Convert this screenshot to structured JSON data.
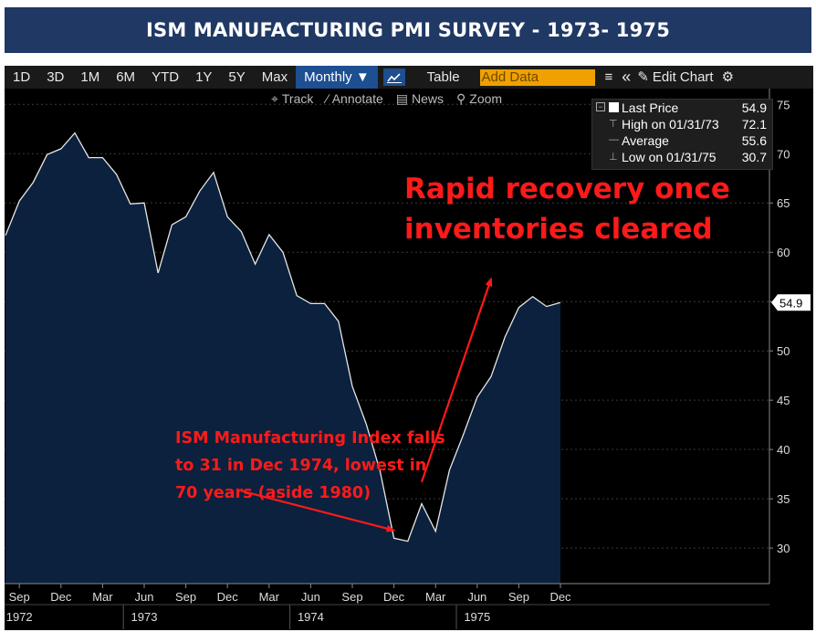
{
  "header": {
    "title": "ISM MANUFACTURING PMI SURVEY - 1973- 1975"
  },
  "toolbar": {
    "periods": [
      "1D",
      "3D",
      "1M",
      "6M",
      "YTD",
      "1Y",
      "5Y",
      "Max"
    ],
    "frequency": "Monthly ▼",
    "table_label": "Table",
    "add_data_placeholder": "Add Data",
    "edit_chart_label": "Edit Chart"
  },
  "subtoolbar": {
    "track": "Track",
    "annotate": "Annotate",
    "news": "News",
    "zoom": "Zoom"
  },
  "legend": {
    "rows": [
      {
        "label": "Last Price",
        "value": "54.9"
      },
      {
        "label": "High on 01/31/73",
        "value": "72.1"
      },
      {
        "label": "Average",
        "value": "55.6"
      },
      {
        "label": "Low on 01/31/75",
        "value": "30.7"
      }
    ]
  },
  "annotations": {
    "recovery": [
      "Rapid recovery once",
      "inventories cleared"
    ],
    "trough": [
      "ISM Manufacturing Index falls",
      "to 31 in Dec 1974, lowest in",
      "70 years (aside 1980)"
    ]
  },
  "colors": {
    "background": "#000000",
    "area_fill": "#0b213d",
    "line": "#e6e6e6",
    "grid": "#3a3a3a",
    "annotation": "#ff1a1a",
    "title_bar": "#1f3864"
  },
  "chart_data": {
    "type": "area",
    "title": "ISM MANUFACTURING PMI SURVEY - 1973- 1975",
    "series": [
      {
        "name": "ISM Manufacturing PMI",
        "x": [
          "Aug 1972",
          "Sep 1972",
          "Oct 1972",
          "Nov 1972",
          "Dec 1972",
          "Jan 1973",
          "Feb 1973",
          "Mar 1973",
          "Apr 1973",
          "May 1973",
          "Jun 1973",
          "Jul 1973",
          "Aug 1973",
          "Sep 1973",
          "Oct 1973",
          "Nov 1973",
          "Dec 1973",
          "Jan 1974",
          "Feb 1974",
          "Mar 1974",
          "Apr 1974",
          "May 1974",
          "Jun 1974",
          "Jul 1974",
          "Aug 1974",
          "Sep 1974",
          "Oct 1974",
          "Nov 1974",
          "Dec 1974",
          "Jan 1975",
          "Feb 1975",
          "Mar 1975",
          "Apr 1975",
          "May 1975",
          "Jun 1975",
          "Jul 1975",
          "Aug 1975",
          "Sep 1975",
          "Oct 1975",
          "Nov 1975",
          "Dec 1975"
        ],
        "values": [
          61.7,
          65.2,
          67.1,
          69.9,
          70.5,
          72.1,
          69.6,
          69.6,
          67.9,
          64.9,
          65.0,
          57.9,
          62.8,
          63.6,
          66.2,
          68.1,
          63.6,
          62.1,
          58.8,
          61.8,
          60.0,
          55.6,
          54.8,
          54.8,
          53.0,
          46.4,
          42.6,
          37.8,
          31.0,
          30.7,
          34.5,
          31.7,
          37.9,
          41.5,
          45.3,
          47.4,
          51.4,
          54.4,
          55.5,
          54.5,
          54.9
        ]
      }
    ],
    "last_value_tag": "54.9",
    "y_ticks": [
      30,
      35,
      40,
      45,
      50,
      55,
      60,
      65,
      70,
      75
    ],
    "ylim": [
      26.4,
      76.6
    ],
    "x_ticks": [
      {
        "x": "Sep 1972",
        "label": "Sep"
      },
      {
        "x": "Dec 1972",
        "label": "Dec"
      },
      {
        "x": "Mar 1973",
        "label": "Mar"
      },
      {
        "x": "Jun 1973",
        "label": "Jun"
      },
      {
        "x": "Sep 1973",
        "label": "Sep"
      },
      {
        "x": "Dec 1973",
        "label": "Dec"
      },
      {
        "x": "Mar 1974",
        "label": "Mar"
      },
      {
        "x": "Jun 1974",
        "label": "Jun"
      },
      {
        "x": "Sep 1974",
        "label": "Sep"
      },
      {
        "x": "Dec 1974",
        "label": "Dec"
      },
      {
        "x": "Mar 1975",
        "label": "Mar"
      },
      {
        "x": "Jun 1975",
        "label": "Jun"
      },
      {
        "x": "Sep 1975",
        "label": "Sep"
      },
      {
        "x": "Dec 1975",
        "label": "Dec"
      }
    ],
    "year_labels": [
      {
        "x": "Sep 1972",
        "label": "1972"
      },
      {
        "x": "Jun 1973",
        "label": "1973"
      },
      {
        "x": "Jun 1974",
        "label": "1974"
      },
      {
        "x": "Jun 1975",
        "label": "1975"
      }
    ],
    "arrows": [
      {
        "name": "trough-arrow",
        "from": {
          "x": "Jan 1974",
          "y": 35.8
        },
        "to": {
          "x": "Dec 1974",
          "y": 31.8
        }
      },
      {
        "name": "recovery-arrow",
        "from": {
          "x": "Feb 1975",
          "y": 36.7
        },
        "to": {
          "x": "Jul 1975",
          "y": 57.3
        }
      }
    ],
    "xlabel": "",
    "ylabel": ""
  }
}
